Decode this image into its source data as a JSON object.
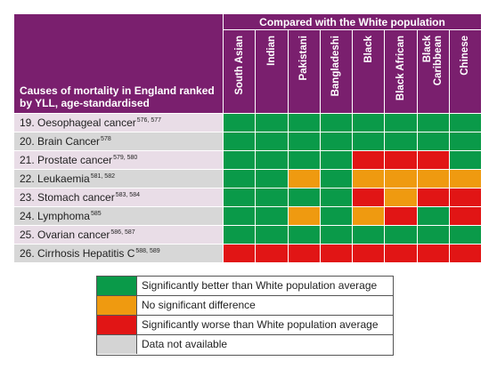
{
  "table": {
    "title": "Causes of mortality in England ranked by YLL, age-standardised",
    "group_header": "Compared with the White population",
    "columns": [
      "South Asian",
      "Indian",
      "Pakistani",
      "Bangladeshi",
      "Black",
      "Black African",
      "Black\nCaribbean",
      "Chinese"
    ],
    "rows": [
      {
        "label": "19. Oesophageal cancer",
        "refs": "576, 577",
        "values": [
          "G",
          "G",
          "G",
          "G",
          "G",
          "G",
          "G",
          "G"
        ]
      },
      {
        "label": "20. Brain Cancer",
        "refs": "578",
        "values": [
          "G",
          "G",
          "G",
          "G",
          "G",
          "G",
          "G",
          "G"
        ]
      },
      {
        "label": "21. Prostate cancer",
        "refs": "579, 580",
        "values": [
          "G",
          "G",
          "G",
          "G",
          "R",
          "R",
          "R",
          "G"
        ]
      },
      {
        "label": "22. Leukaemia",
        "refs": "581, 582",
        "values": [
          "G",
          "G",
          "O",
          "G",
          "O",
          "O",
          "O",
          "O"
        ]
      },
      {
        "label": "23. Stomach cancer",
        "refs": "583, 584",
        "values": [
          "G",
          "G",
          "G",
          "G",
          "R",
          "O",
          "R",
          "R"
        ]
      },
      {
        "label": "24. Lymphoma",
        "refs": "585",
        "values": [
          "G",
          "G",
          "O",
          "G",
          "O",
          "R",
          "G",
          "R"
        ]
      },
      {
        "label": "25. Ovarian cancer",
        "refs": "586, 587",
        "values": [
          "G",
          "G",
          "G",
          "G",
          "G",
          "G",
          "G",
          "G"
        ]
      },
      {
        "label": "26. Cirrhosis Hepatitis C",
        "refs": "588, 589",
        "values": [
          "R",
          "R",
          "R",
          "R",
          "R",
          "R",
          "R",
          "R"
        ]
      }
    ]
  },
  "legend": [
    {
      "code": "G",
      "text": "Significantly better than White population average"
    },
    {
      "code": "O",
      "text": "No significant difference"
    },
    {
      "code": "R",
      "text": "Significantly worse than White population average"
    },
    {
      "code": "N",
      "text": "Data not available"
    }
  ],
  "colors": {
    "header_purple": "#7a1f6e",
    "G": "#0a9a49",
    "O": "#ef9a10",
    "R": "#e11515",
    "N": "#d4d4d4"
  }
}
